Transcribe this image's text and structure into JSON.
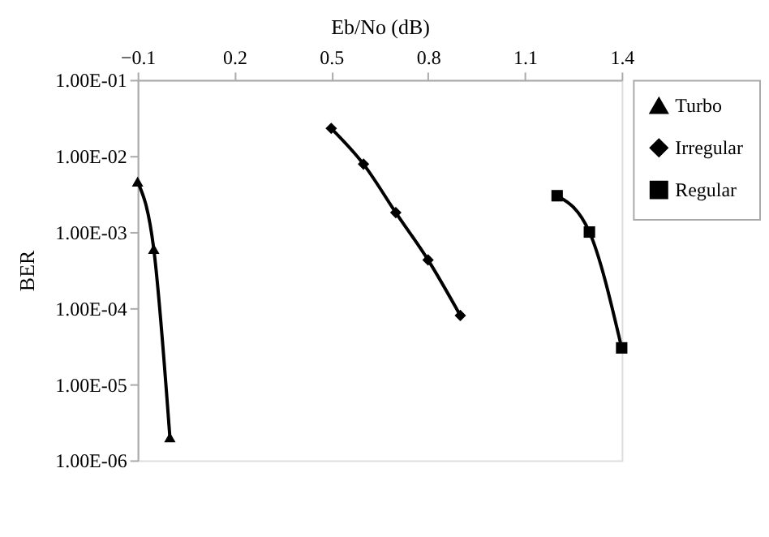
{
  "chart_data": {
    "type": "line",
    "xlabel": "Eb/No (dB)",
    "ylabel": "BER",
    "log": "y",
    "grid": false,
    "legend": "right",
    "xlim": [
      -0.1,
      1.4
    ],
    "xticks": [
      -0.1,
      0.2,
      0.5,
      0.8,
      1.1,
      1.4
    ],
    "ylim": [
      1e-06,
      0.1
    ],
    "yticks": [
      {
        "value": 1e-06,
        "label": "1.00E-06"
      },
      {
        "value": 1e-05,
        "label": "1.00E-05"
      },
      {
        "value": 0.0001,
        "label": "1.00E-04"
      },
      {
        "value": 0.001,
        "label": "1.00E-03"
      },
      {
        "value": 0.01,
        "label": "1.00E-02"
      },
      {
        "value": 0.1,
        "label": "1.00E-01"
      }
    ],
    "line_style": "solid",
    "series": [
      {
        "name": "Turbo",
        "color": "#000000",
        "marker": "triangle",
        "x": [
          -0.1,
          -0.05,
          0.0
        ],
        "values": [
          0.0046,
          0.0006,
          2e-06
        ]
      },
      {
        "name": "Irregular",
        "color": "#000000",
        "marker": "diamond",
        "x": [
          0.5,
          0.6,
          0.7,
          0.8,
          0.9
        ],
        "values": [
          0.023,
          0.0078,
          0.0018,
          0.00043,
          8e-05
        ]
      },
      {
        "name": "Regular",
        "color": "#000000",
        "marker": "square",
        "x": [
          1.2,
          1.3,
          1.4
        ],
        "values": [
          0.003,
          0.001,
          3e-05
        ]
      }
    ]
  }
}
